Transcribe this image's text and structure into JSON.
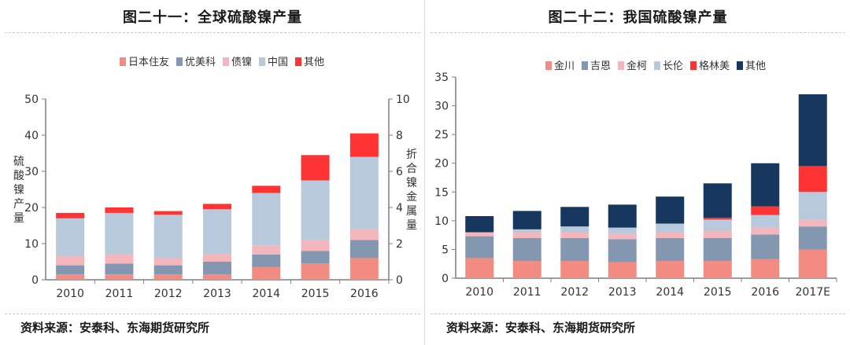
{
  "left": {
    "title": "图二十一：全球硫酸镍产量",
    "source": "资料来源：安泰科、东海期货研究所",
    "chart_data": {
      "type": "bar",
      "stacked": true,
      "categories": [
        "2010",
        "2011",
        "2012",
        "2013",
        "2014",
        "2015",
        "2016"
      ],
      "series": [
        {
          "name": "日本住友",
          "color": "#f28b82",
          "values": [
            1.5,
            1.5,
            1.5,
            1.5,
            3.5,
            4.5,
            6
          ]
        },
        {
          "name": "优美科",
          "color": "#8497b0",
          "values": [
            2.5,
            3,
            2.5,
            3.5,
            3.5,
            3.5,
            5
          ]
        },
        {
          "name": "债镍",
          "color": "#f4b6bd",
          "values": [
            2.5,
            2.5,
            2,
            2,
            2.5,
            3,
            3
          ]
        },
        {
          "name": "中国",
          "color": "#b8c9db",
          "values": [
            10.5,
            11.5,
            12,
            12.5,
            14.5,
            16.5,
            20
          ]
        },
        {
          "name": "其他",
          "color": "#ff3333",
          "values": [
            1.5,
            1.5,
            1,
            1.5,
            2,
            7,
            6.5
          ]
        }
      ],
      "ylabel": "硫酸镍产量",
      "y2label": "折合镍金属量",
      "ylim": [
        0,
        50
      ],
      "yticks": [
        "0",
        "10",
        "20",
        "30",
        "40",
        "50"
      ],
      "y2lim": [
        0,
        10
      ],
      "y2ticks": [
        "0",
        "2",
        "4",
        "6",
        "8",
        "10"
      ],
      "legend": "top",
      "grid": false
    }
  },
  "right": {
    "title": "图二十二：我国硫酸镍产量",
    "source": "资料来源：安泰科、东海期货研究所",
    "chart_data": {
      "type": "bar",
      "stacked": true,
      "categories": [
        "2010",
        "2011",
        "2012",
        "2013",
        "2014",
        "2015",
        "2016",
        "2017E"
      ],
      "series": [
        {
          "name": "金川",
          "color": "#f28b82",
          "values": [
            3.5,
            3,
            3,
            2.8,
            3,
            3,
            3.3,
            5
          ]
        },
        {
          "name": "吉恩",
          "color": "#8497b0",
          "values": [
            3.8,
            4,
            4,
            4,
            4,
            4,
            4.3,
            4
          ]
        },
        {
          "name": "金柯",
          "color": "#f4b6bd",
          "values": [
            0.7,
            1,
            1,
            1,
            1,
            1.2,
            1.2,
            1.2
          ]
        },
        {
          "name": "长伦",
          "color": "#b8c9db",
          "values": [
            0,
            0.5,
            1,
            1,
            1.5,
            2,
            2.2,
            4.8
          ]
        },
        {
          "name": "格林美",
          "color": "#ff3333",
          "values": [
            0,
            0,
            0,
            0,
            0,
            0.3,
            1.5,
            4.5
          ]
        },
        {
          "name": "其他",
          "color": "#17375e",
          "values": [
            2.8,
            3.2,
            3.4,
            4,
            4.7,
            6,
            7.5,
            12.5
          ]
        }
      ],
      "ylim": [
        0,
        35
      ],
      "yticks": [
        "0",
        "5",
        "10",
        "15",
        "20",
        "25",
        "30",
        "35"
      ],
      "legend": "top",
      "grid": false
    }
  }
}
